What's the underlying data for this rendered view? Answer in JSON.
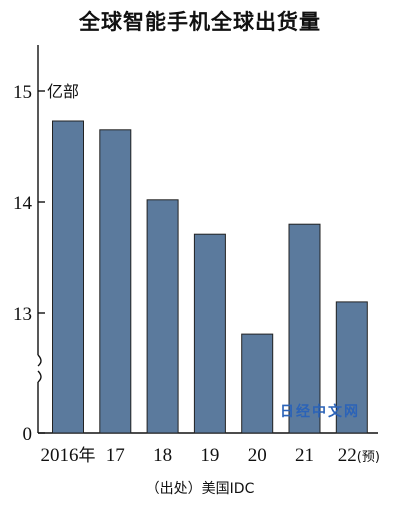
{
  "chart_data": {
    "type": "bar",
    "title": "全球智能手机全球出货量",
    "unit": "亿部",
    "categories": [
      "2016年",
      "17",
      "18",
      "19",
      "20",
      "21",
      "22(预)"
    ],
    "values": [
      14.73,
      14.65,
      14.02,
      13.71,
      12.81,
      13.8,
      13.1
    ],
    "y_ticks": [
      0,
      13,
      14,
      15
    ],
    "ylim": [
      12.55,
      15.45
    ],
    "axis_break": true,
    "bar_color": "#5b7a9d",
    "grid": false,
    "source": "（出处）美国IDC"
  },
  "watermark": "日经中文网"
}
